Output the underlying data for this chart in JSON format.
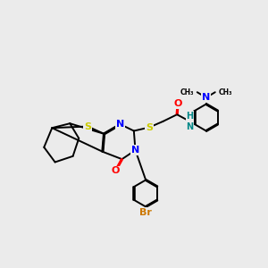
{
  "bg_color": "#ebebeb",
  "atom_colors": {
    "S": "#cccc00",
    "N": "#0000ff",
    "O": "#ff0000",
    "Br": "#cc7700",
    "H": "#008888",
    "C": "#000000"
  },
  "bond_color": "#000000",
  "bond_width": 1.4,
  "figsize": [
    3.0,
    3.0
  ],
  "dpi": 100,
  "scale": 0.333
}
